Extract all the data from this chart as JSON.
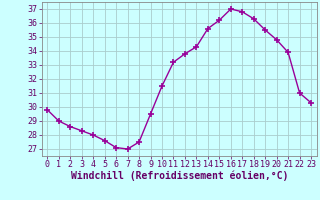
{
  "x": [
    0,
    1,
    2,
    3,
    4,
    5,
    6,
    7,
    8,
    9,
    10,
    11,
    12,
    13,
    14,
    15,
    16,
    17,
    18,
    19,
    20,
    21,
    22,
    23
  ],
  "y": [
    29.8,
    29.0,
    28.6,
    28.3,
    28.0,
    27.6,
    27.1,
    27.0,
    27.5,
    29.5,
    31.5,
    33.2,
    33.8,
    34.3,
    35.6,
    36.2,
    37.0,
    36.8,
    36.3,
    35.5,
    34.8,
    33.9,
    31.0,
    30.3
  ],
  "line_color": "#990099",
  "marker": "+",
  "marker_size": 4,
  "marker_lw": 1.2,
  "bg_color": "#ccffff",
  "grid_color": "#aacccc",
  "xlabel": "Windchill (Refroidissement éolien,°C)",
  "xlim": [
    -0.5,
    23.5
  ],
  "ylim": [
    26.5,
    37.5
  ],
  "yticks": [
    27,
    28,
    29,
    30,
    31,
    32,
    33,
    34,
    35,
    36,
    37
  ],
  "xticks": [
    0,
    1,
    2,
    3,
    4,
    5,
    6,
    7,
    8,
    9,
    10,
    11,
    12,
    13,
    14,
    15,
    16,
    17,
    18,
    19,
    20,
    21,
    22,
    23
  ],
  "xlabel_fontsize": 7,
  "tick_fontsize": 6,
  "line_width": 1.0,
  "label_color": "#660066",
  "spine_color": "#888888"
}
